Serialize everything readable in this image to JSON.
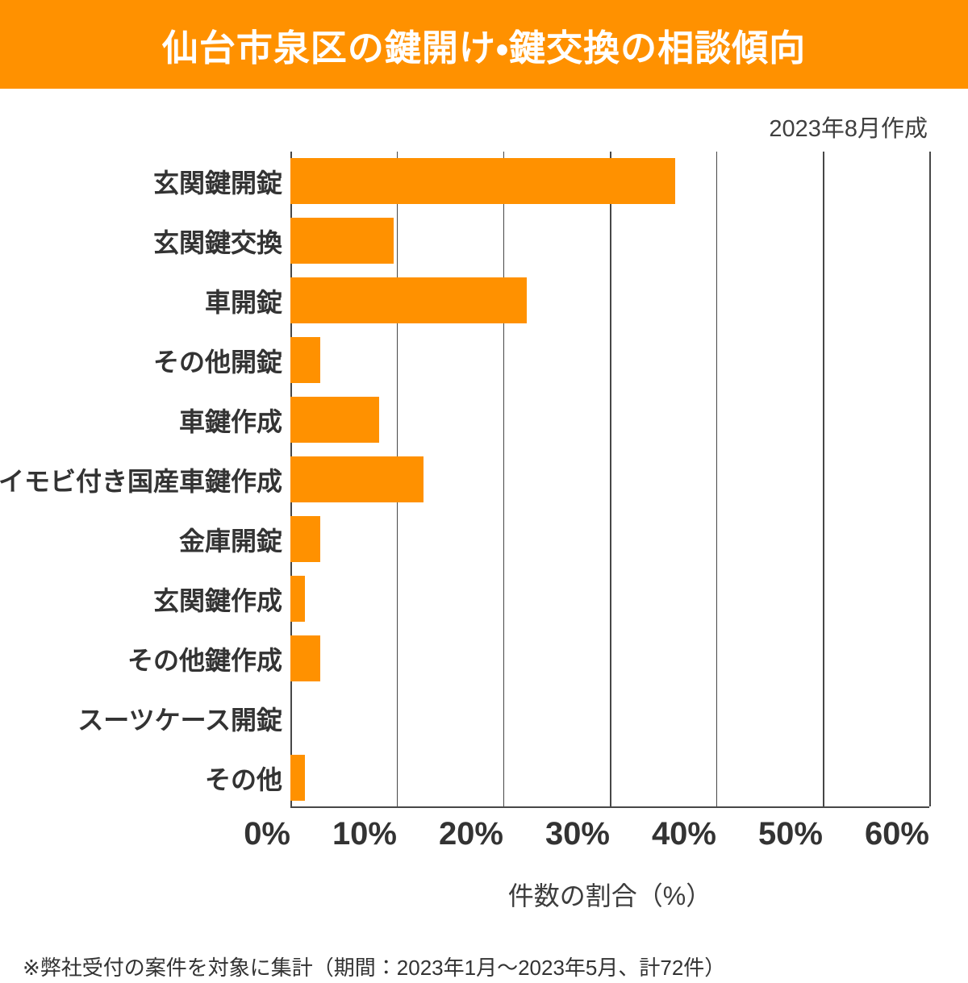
{
  "header": {
    "title": "仙台市泉区の鍵開け・鍵交換の相談傾向"
  },
  "meta": {
    "created_label": "2023年8月作成"
  },
  "chart_data": {
    "type": "bar",
    "orientation": "horizontal",
    "title": "仙台市泉区の鍵開け・鍵交換の相談傾向",
    "categories": [
      "玄関鍵開錠",
      "玄関鍵交換",
      "車開錠",
      "その他開錠",
      "車鍵作成",
      "イモビ付き国産車鍵作成",
      "金庫開錠",
      "玄関鍵作成",
      "その他鍵作成",
      "スーツケース開錠",
      "その他"
    ],
    "values": [
      36.1,
      9.7,
      22.2,
      2.8,
      8.3,
      12.5,
      2.8,
      1.4,
      2.8,
      0,
      1.4
    ],
    "xlabel": "件数の割合（%）",
    "xlim": [
      0,
      60
    ],
    "xtick_labels": [
      "0%",
      "10%",
      "20%",
      "30%",
      "40%",
      "50%",
      "60%"
    ],
    "bar_color": "#FF9100",
    "banner_color": "#FF9100",
    "grid": "vertical-only",
    "legend": "none"
  },
  "footer": {
    "note": "※弊社受付の案件を対象に集計（期間：2023年1月～2023年5月、計72件）"
  }
}
